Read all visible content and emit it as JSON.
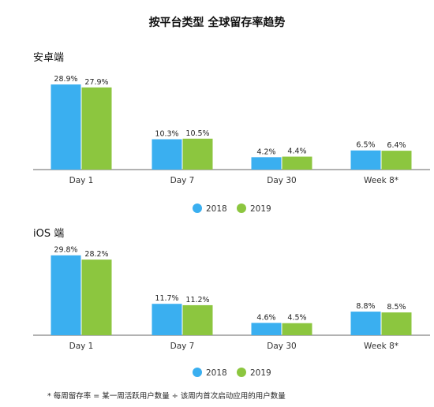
{
  "title": "按平台类型 全球留存率趋势",
  "footnote": "* 每周留存率 = 某一周活跃用户数量 ÷ 该周内首次启动应用的用户数量",
  "colors": {
    "2018": "#3aaff0",
    "2019": "#8cc63f",
    "axis": "#666666"
  },
  "chart_data": [
    {
      "type": "bar",
      "title": "安卓端",
      "categories": [
        "Day 1",
        "Day 7",
        "Day 30",
        "Week 8*"
      ],
      "series": [
        {
          "name": "2018",
          "values": [
            28.9,
            10.3,
            4.2,
            6.5
          ],
          "labels": [
            "28.9%",
            "10.3%",
            "4.2%",
            "6.5%"
          ]
        },
        {
          "name": "2019",
          "values": [
            27.9,
            10.5,
            4.4,
            6.4
          ],
          "labels": [
            "27.9%",
            "10.5%",
            "4.4%",
            "6.4%"
          ]
        }
      ],
      "ylim": [
        0,
        30
      ],
      "legend": "bottom-center",
      "grid": false
    },
    {
      "type": "bar",
      "title": "iOS 端",
      "categories": [
        "Day 1",
        "Day 7",
        "Day 30",
        "Week 8*"
      ],
      "series": [
        {
          "name": "2018",
          "values": [
            29.8,
            11.7,
            4.6,
            8.8
          ],
          "labels": [
            "29.8%",
            "11.7%",
            "4.6%",
            "8.8%"
          ]
        },
        {
          "name": "2019",
          "values": [
            28.2,
            11.2,
            4.5,
            8.5
          ],
          "labels": [
            "28.2%",
            "11.2%",
            "4.5%",
            "8.5%"
          ]
        }
      ],
      "ylim": [
        0,
        30
      ],
      "legend": "bottom-center",
      "grid": false
    }
  ]
}
